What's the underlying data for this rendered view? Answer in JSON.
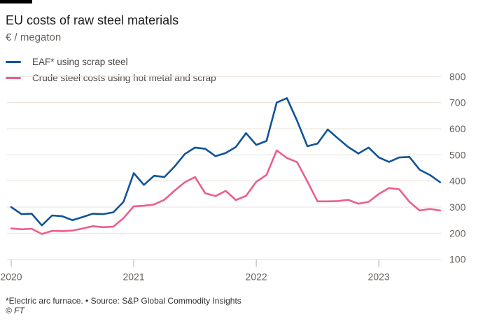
{
  "header": {
    "title": "EU costs of raw steel materials",
    "subtitle": "€ / megaton"
  },
  "footer": {
    "note": "*Electric arc furnace. • Source: S&P Global Commodity Insights",
    "credit": "© FT"
  },
  "chart_data": {
    "type": "line",
    "title": "EU costs of raw steel materials",
    "ylabel": "€ / megaton",
    "ylim": [
      100,
      800
    ],
    "yticks": [
      100,
      200,
      300,
      400,
      500,
      600,
      700,
      800
    ],
    "xticks": [
      "2020",
      "2021",
      "2022",
      "2023"
    ],
    "grid": true,
    "legend": "top-left",
    "x": [
      "2020-01",
      "2020-02",
      "2020-03",
      "2020-04",
      "2020-05",
      "2020-06",
      "2020-07",
      "2020-08",
      "2020-09",
      "2020-10",
      "2020-11",
      "2020-12",
      "2021-01",
      "2021-02",
      "2021-03",
      "2021-04",
      "2021-05",
      "2021-06",
      "2021-07",
      "2021-08",
      "2021-09",
      "2021-10",
      "2021-11",
      "2021-12",
      "2022-01",
      "2022-02",
      "2022-03",
      "2022-04",
      "2022-05",
      "2022-06",
      "2022-07",
      "2022-08",
      "2022-09",
      "2022-10",
      "2022-11",
      "2022-12",
      "2023-01",
      "2023-02",
      "2023-03",
      "2023-04",
      "2023-05",
      "2023-06",
      "2023-07"
    ],
    "series": [
      {
        "name": "EAF* using scrap steel",
        "color": "#0f5499",
        "values": [
          300,
          273,
          275,
          230,
          268,
          265,
          250,
          262,
          275,
          273,
          280,
          320,
          430,
          385,
          420,
          415,
          455,
          503,
          528,
          523,
          495,
          507,
          530,
          583,
          538,
          553,
          700,
          717,
          630,
          533,
          543,
          597,
          563,
          530,
          505,
          528,
          490,
          473,
          490,
          492,
          443,
          423,
          395
        ]
      },
      {
        "name": "Crude steel costs using hot metal and scrap",
        "color": "#eb5e8d",
        "values": [
          218,
          215,
          217,
          197,
          209,
          208,
          210,
          218,
          227,
          223,
          225,
          258,
          303,
          305,
          310,
          328,
          363,
          395,
          415,
          353,
          342,
          362,
          327,
          343,
          397,
          423,
          517,
          488,
          472,
          398,
          322,
          322,
          323,
          328,
          313,
          320,
          350,
          373,
          368,
          320,
          287,
          293,
          287
        ]
      }
    ]
  }
}
